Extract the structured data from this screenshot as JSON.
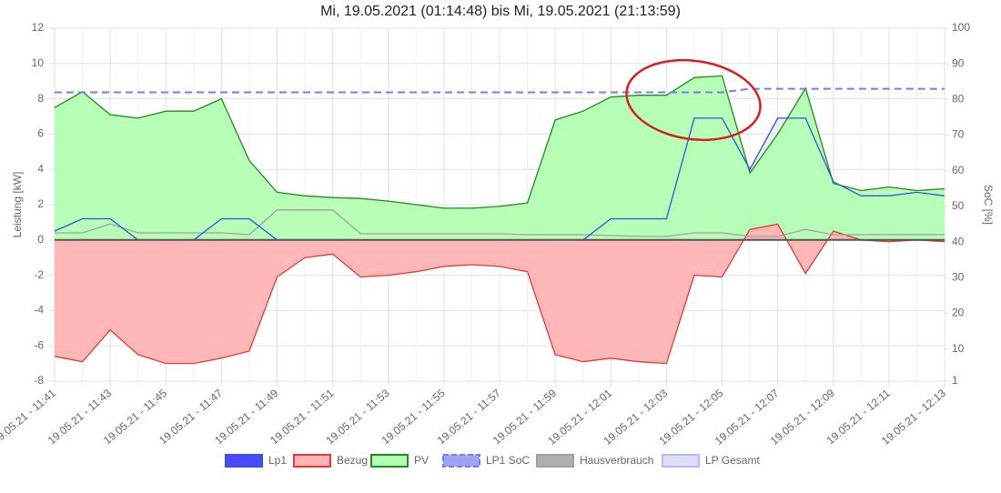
{
  "chart_data": {
    "type": "area-line",
    "title": "Mi, 19.05.2021 (01:14:48) bis Mi, 19.05.2021 (21:13:59)",
    "y_label": "Leistung [kW]",
    "y2_label": "SoC [%]",
    "categories": [
      "19.05.21 - 11:41",
      null,
      "19.05.21 - 11:43",
      null,
      "19.05.21 - 11:45",
      null,
      "19.05.21 - 11:47",
      null,
      "19.05.21 - 11:49",
      null,
      "19.05.21 - 11:51",
      null,
      "19.05.21 - 11:53",
      null,
      "19.05.21 - 11:55",
      null,
      "19.05.21 - 11:57",
      null,
      "19.05.21 - 11:59",
      null,
      "19.05.21 - 12:01",
      null,
      "19.05.21 - 12:03",
      null,
      "19.05.21 - 12:05",
      null,
      "19.05.21 - 12:07",
      null,
      "19.05.21 - 12:09",
      null,
      "19.05.21 - 12:11",
      null,
      "19.05.21 - 12:13"
    ],
    "ylim": [
      -8,
      12
    ],
    "yticks": [
      -8,
      -6,
      -4,
      -2,
      0,
      2,
      4,
      6,
      8,
      10,
      12
    ],
    "y2lim": [
      1,
      100
    ],
    "y2ticks": [
      1,
      10,
      20,
      30,
      40,
      50,
      60,
      70,
      80,
      90,
      100
    ],
    "grid": true,
    "series": [
      {
        "name": "Lp1",
        "color": "#3a4fdc",
        "fill": "#4a4aff",
        "style": "line",
        "values": [
          0.5,
          1.2,
          1.2,
          0,
          0,
          0,
          1.2,
          1.2,
          0,
          0,
          0,
          0,
          0,
          0,
          0,
          0,
          0,
          0,
          0,
          0,
          1.2,
          1.2,
          1.2,
          6.9,
          6.9,
          4.0,
          6.9,
          6.9,
          3.3,
          2.5,
          2.5,
          2.7,
          2.5
        ]
      },
      {
        "name": "Bezug",
        "color": "#e03a3a",
        "fill": "#ffb3b3",
        "style": "area",
        "values": [
          -6.6,
          -6.9,
          -5.1,
          -6.5,
          -7.0,
          -7.0,
          -6.7,
          -6.3,
          -2.1,
          -1.0,
          -0.8,
          -2.1,
          -2.0,
          -1.8,
          -1.5,
          -1.4,
          -1.5,
          -1.8,
          -6.5,
          -6.9,
          -6.7,
          -6.9,
          -7.0,
          -2.0,
          -2.1,
          0.6,
          0.9,
          -1.9,
          0.5,
          0,
          -0.1,
          0,
          -0.1
        ]
      },
      {
        "name": "PV",
        "color": "#1f8a1f",
        "fill": "#b3ffb3",
        "style": "area",
        "values": [
          7.5,
          8.4,
          7.1,
          6.9,
          7.3,
          7.3,
          8.0,
          4.5,
          2.7,
          2.5,
          2.4,
          2.35,
          2.2,
          2.0,
          1.8,
          1.8,
          1.9,
          2.1,
          6.8,
          7.3,
          8.1,
          8.2,
          8.2,
          9.2,
          9.3,
          3.8,
          6.0,
          8.6,
          3.2,
          2.8,
          3.0,
          2.8,
          2.9
        ]
      },
      {
        "name": "LP1 SoC",
        "color": "#7a7aee",
        "fill": "#7a7aee",
        "style": "dashed",
        "axis": "y2",
        "values": [
          82,
          82,
          82,
          82,
          82,
          82,
          82,
          82,
          82,
          82,
          82,
          82,
          82,
          82,
          82,
          82,
          82,
          82,
          82,
          82,
          82,
          82,
          82,
          82,
          82,
          83,
          83,
          83,
          83,
          83,
          83,
          83,
          83
        ]
      },
      {
        "name": "Hausverbrauch",
        "color": "#a0a0a0",
        "fill": "#b0b0b0",
        "style": "line",
        "values": [
          0.4,
          0.4,
          0.9,
          0.4,
          0.4,
          0.4,
          0.4,
          0.3,
          1.7,
          1.7,
          1.7,
          0.35,
          0.35,
          0.35,
          0.35,
          0.35,
          0.35,
          0.3,
          0.3,
          0.3,
          0.25,
          0.2,
          0.2,
          0.4,
          0.4,
          0.2,
          0.2,
          0.6,
          0.3,
          0.3,
          0.3,
          0.3,
          0.3
        ]
      },
      {
        "name": "LP Gesamt",
        "color": "#b8b8ff",
        "fill": "#dedefa",
        "style": "areaonly",
        "values": [
          0.5,
          1.2,
          1.2,
          0,
          0,
          0,
          1.2,
          1.2,
          0,
          0,
          0,
          0,
          0,
          0,
          0,
          0,
          0,
          0,
          0,
          0,
          1.2,
          1.2,
          1.2,
          6.9,
          6.9,
          4.0,
          6.9,
          6.9,
          3.3,
          2.5,
          2.5,
          2.7,
          2.5
        ]
      }
    ]
  }
}
